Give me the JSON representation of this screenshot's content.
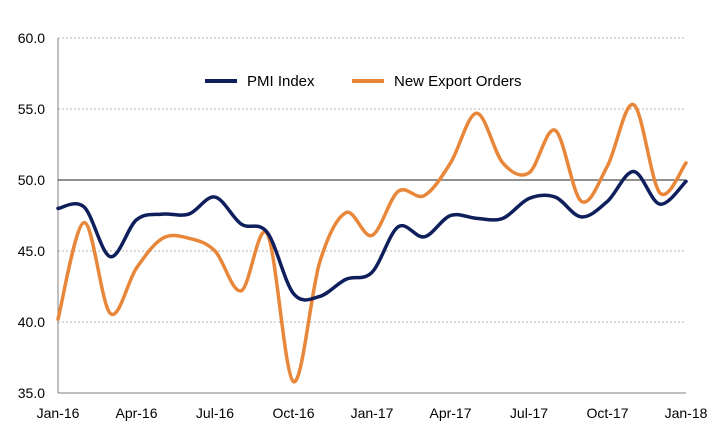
{
  "chart_data": {
    "type": "line",
    "title": "",
    "xlabel": "",
    "ylabel": "",
    "ylim": [
      35,
      60
    ],
    "yticks": [
      "35.0",
      "40.0",
      "45.0",
      "50.0",
      "55.0",
      "60.0"
    ],
    "ytick_values": [
      35,
      40,
      45,
      50,
      55,
      60
    ],
    "xtick_labels": [
      "Jan-16",
      "Apr-16",
      "Jul-16",
      "Oct-16",
      "Jan-17",
      "Apr-17",
      "Jul-17",
      "Oct-17",
      "Jan-18"
    ],
    "xtick_months": [
      0,
      3,
      6,
      9,
      12,
      15,
      18,
      21,
      24
    ],
    "x": [
      "Jan-16",
      "Feb-16",
      "Mar-16",
      "Apr-16",
      "May-16",
      "Jun-16",
      "Jul-16",
      "Aug-16",
      "Sep-16",
      "Oct-16",
      "Nov-16",
      "Dec-16",
      "Jan-17",
      "Feb-17",
      "Mar-17",
      "Apr-17",
      "May-17",
      "Jun-17",
      "Jul-17",
      "Aug-17",
      "Sep-17",
      "Oct-17",
      "Nov-17",
      "Dec-17",
      "Jan-18"
    ],
    "grid": "horizontal dotted",
    "reference_line": 50,
    "legend_position": "top-center",
    "series": [
      {
        "name": "PMI Index",
        "color": "#0f1f5c",
        "values": [
          48.0,
          48.1,
          44.6,
          47.2,
          47.6,
          47.6,
          48.8,
          46.9,
          46.3,
          42.0,
          41.8,
          43.0,
          43.5,
          46.7,
          46.0,
          47.5,
          47.3,
          47.3,
          48.7,
          48.8,
          47.4,
          48.5,
          50.6,
          48.3,
          49.9
        ]
      },
      {
        "name": "New Export Orders",
        "color": "#e8873a",
        "values": [
          40.2,
          47.0,
          40.6,
          43.8,
          45.9,
          45.9,
          45.0,
          42.2,
          46.2,
          35.8,
          44.2,
          47.7,
          46.1,
          49.2,
          48.9,
          51.2,
          54.7,
          51.2,
          50.5,
          53.5,
          48.5,
          51.0,
          55.3,
          49.1,
          51.2
        ]
      }
    ]
  }
}
